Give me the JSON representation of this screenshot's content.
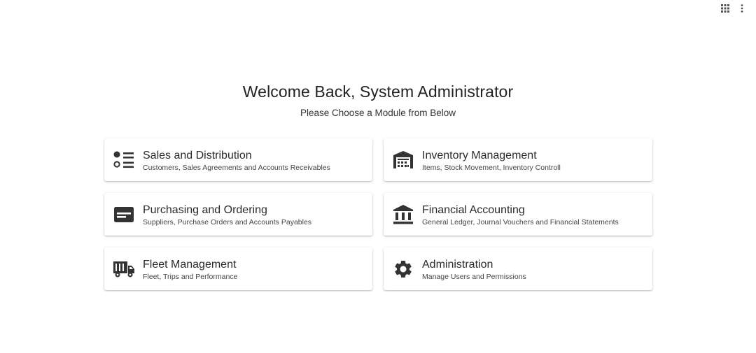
{
  "topbar": {
    "apps_icon": "grid-icon",
    "menu_icon": "more-vert-icon"
  },
  "header": {
    "welcome": "Welcome Back, System Administrator",
    "subtitle": "Please Choose a Module from Below"
  },
  "modules": [
    {
      "title": "Sales and Distribution",
      "description": "Customers, Sales Agreements and Accounts Receivables",
      "icon": "list-icon"
    },
    {
      "title": "Inventory Management",
      "description": "Items, Stock Movement, Inventory Controll",
      "icon": "warehouse-icon"
    },
    {
      "title": "Purchasing and Ordering",
      "description": "Suppliers, Purchase Orders and Accounts Payables",
      "icon": "card-icon"
    },
    {
      "title": "Financial Accounting",
      "description": "General Ledger, Journal Vouchers and Financial Statements",
      "icon": "bank-icon"
    },
    {
      "title": "Fleet Management",
      "description": "Fleet, Trips and Performance",
      "icon": "truck-icon"
    },
    {
      "title": "Administration",
      "description": "Manage Users and Permissions",
      "icon": "gear-icon"
    }
  ],
  "colors": {
    "icon": "#333333",
    "text": "#2b2b2b"
  }
}
